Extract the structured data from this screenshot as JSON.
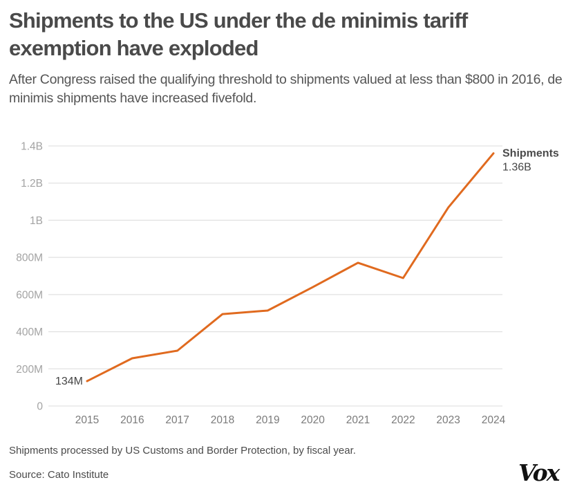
{
  "header": {
    "title": "Shipments to the US under the de minimis tariff exemption have exploded",
    "subtitle": "After Congress raised the qualifying threshold to shipments valued at less than $800 in 2016, de minimis shipments have increased fivefold."
  },
  "footer": {
    "note": "Shipments processed by US Customs and Border Protection, by fiscal year.",
    "source": "Source: Cato Institute",
    "logo": "Vox"
  },
  "colors": {
    "line": "#e06a1f",
    "grid": "#e2e2e2"
  },
  "chart_data": {
    "type": "line",
    "title": "Shipments to the US under the de minimis tariff exemption have exploded",
    "xlabel": "",
    "ylabel": "",
    "x": [
      "2015",
      "2016",
      "2017",
      "2018",
      "2019",
      "2020",
      "2021",
      "2022",
      "2023",
      "2024"
    ],
    "series": [
      {
        "name": "Shipments",
        "values": [
          134000000,
          257000000,
          298000000,
          495000000,
          514000000,
          640000000,
          771000000,
          689000000,
          1069000000,
          1360000000
        ]
      }
    ],
    "ylim": [
      0,
      1400000000
    ],
    "yticks": [
      0,
      200000000,
      400000000,
      600000000,
      800000000,
      1000000000,
      1200000000,
      1400000000
    ],
    "ytick_labels": [
      "0",
      "200M",
      "400M",
      "600M",
      "800M",
      "1B",
      "1.2B",
      "1.4B"
    ],
    "grid": true,
    "annotations": {
      "start_label": "134M",
      "end_series_label": "Shipments",
      "end_value_label": "1.36B"
    },
    "legend": "none (direct label at line end)"
  }
}
